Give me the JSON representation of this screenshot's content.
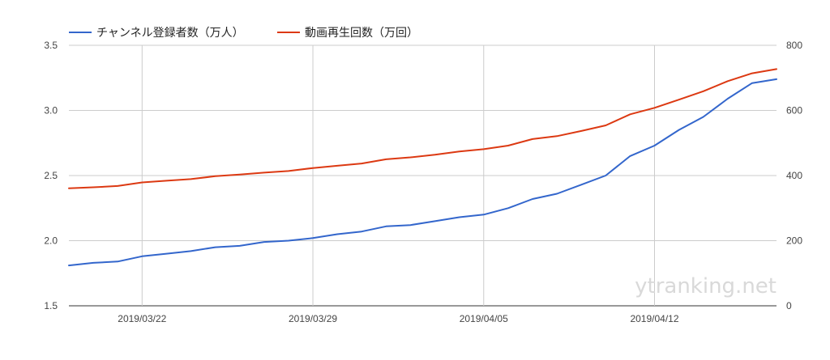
{
  "chart_data": {
    "type": "line",
    "title": "",
    "xlabel": "",
    "ylabel": "",
    "x": [
      "2019/03/19",
      "2019/03/20",
      "2019/03/21",
      "2019/03/22",
      "2019/03/23",
      "2019/03/24",
      "2019/03/25",
      "2019/03/26",
      "2019/03/27",
      "2019/03/28",
      "2019/03/29",
      "2019/03/30",
      "2019/03/31",
      "2019/04/01",
      "2019/04/02",
      "2019/04/03",
      "2019/04/04",
      "2019/04/05",
      "2019/04/06",
      "2019/04/07",
      "2019/04/08",
      "2019/04/09",
      "2019/04/10",
      "2019/04/11",
      "2019/04/12",
      "2019/04/13",
      "2019/04/14",
      "2019/04/15",
      "2019/04/16",
      "2019/04/17"
    ],
    "x_tick_labels": [
      "2019/03/22",
      "2019/03/29",
      "2019/04/05",
      "2019/04/12"
    ],
    "series": [
      {
        "name": "チャンネル登録者数（万人）",
        "axis": "left",
        "color": "#3366cc",
        "values": [
          1.81,
          1.83,
          1.84,
          1.88,
          1.9,
          1.92,
          1.95,
          1.96,
          1.99,
          2.0,
          2.02,
          2.05,
          2.07,
          2.11,
          2.12,
          2.15,
          2.18,
          2.2,
          2.25,
          2.32,
          2.36,
          2.43,
          2.5,
          2.65,
          2.73,
          2.85,
          2.95,
          3.09,
          3.21,
          3.24
        ]
      },
      {
        "name": "動画再生回数（万回）",
        "axis": "right",
        "color": "#dc3912",
        "values": [
          361,
          364,
          368,
          379,
          384,
          389,
          398,
          403,
          409,
          414,
          423,
          430,
          437,
          450,
          456,
          464,
          474,
          481,
          492,
          512,
          521,
          537,
          554,
          588,
          608,
          633,
          659,
          690,
          714,
          727
        ]
      }
    ],
    "y_left": {
      "range": [
        1.5,
        3.5
      ],
      "ticks": [
        "1.5",
        "2.0",
        "2.5",
        "3.0",
        "3.5"
      ]
    },
    "y_right": {
      "range": [
        0,
        800
      ],
      "ticks": [
        "0",
        "200",
        "400",
        "600",
        "800"
      ]
    },
    "grid": true,
    "legend_position": "top-left",
    "watermark": "ytranking.net"
  }
}
